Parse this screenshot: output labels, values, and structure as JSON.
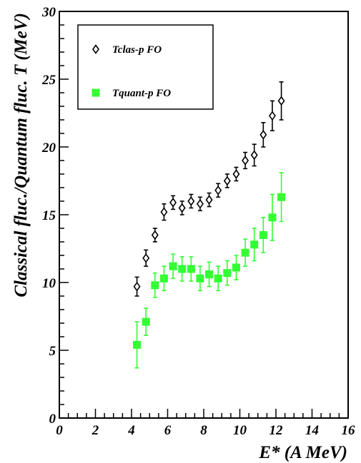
{
  "chart_data": {
    "type": "scatter",
    "title": "",
    "xlabel": "E* (A MeV)",
    "ylabel": "Classical fluc./Quantum fluc. T (MeV)",
    "xlim": [
      0,
      16
    ],
    "ylim": [
      0,
      30
    ],
    "x_ticks": [
      "0",
      "2",
      "4",
      "6",
      "8",
      "10",
      "12",
      "14",
      "16"
    ],
    "y_ticks": [
      "0",
      "5",
      "10",
      "15",
      "20",
      "25",
      "30"
    ],
    "grid": false,
    "legend_position": "top-left",
    "series": [
      {
        "name": "Tclas-p FO",
        "marker": "open-diamond",
        "color": "#000000",
        "x": [
          4.3,
          4.8,
          5.3,
          5.8,
          6.3,
          6.8,
          7.3,
          7.8,
          8.3,
          8.8,
          9.3,
          9.8,
          10.3,
          10.8,
          11.3,
          11.8,
          12.3
        ],
        "y": [
          9.7,
          11.8,
          13.5,
          15.2,
          15.9,
          15.5,
          16.0,
          15.8,
          16.1,
          16.8,
          17.5,
          18.0,
          19.0,
          19.4,
          20.9,
          22.3,
          23.4
        ],
        "err": [
          0.7,
          0.6,
          0.5,
          0.6,
          0.5,
          0.5,
          0.5,
          0.5,
          0.5,
          0.5,
          0.5,
          0.5,
          0.6,
          0.8,
          0.9,
          1.1,
          1.4
        ]
      },
      {
        "name": "Tquant-p FO",
        "marker": "filled-square",
        "color": "#33ff33",
        "x": [
          4.3,
          4.8,
          5.3,
          5.8,
          6.3,
          6.8,
          7.3,
          7.8,
          8.3,
          8.8,
          9.3,
          9.8,
          10.3,
          10.8,
          11.3,
          11.8,
          12.3
        ],
        "y": [
          5.4,
          7.1,
          9.8,
          10.3,
          11.2,
          11.0,
          11.0,
          10.3,
          10.6,
          10.3,
          10.7,
          11.1,
          12.2,
          12.8,
          13.5,
          14.8,
          16.3
        ],
        "err": [
          1.7,
          1.0,
          0.9,
          0.9,
          0.9,
          0.9,
          0.9,
          0.9,
          0.9,
          0.9,
          0.9,
          0.9,
          1.0,
          1.2,
          1.3,
          1.7,
          1.8
        ]
      }
    ]
  }
}
